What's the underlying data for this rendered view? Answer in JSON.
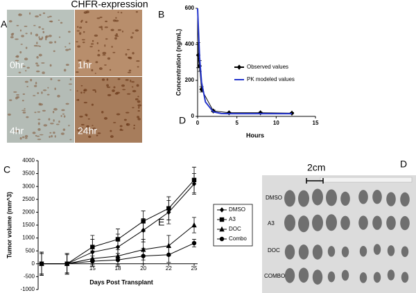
{
  "panel_a": {
    "letter": "A",
    "title": "CHFR-expression",
    "tiles": [
      "0hr",
      "1hr",
      "4hr",
      "24hr"
    ]
  },
  "panel_d": {
    "letter": "D",
    "scale": "2cm",
    "rows": [
      "DMSO",
      "A3",
      "DOC",
      "COMBO"
    ]
  },
  "chart_data": [
    {
      "type": "line",
      "letter": "B",
      "stray_letter": "D",
      "xlabel": "Hours",
      "ylabel": "Concentration (ng/mL)",
      "xlim": [
        0,
        15
      ],
      "xticks": [
        0,
        5,
        10,
        15
      ],
      "ylim": [
        0,
        600
      ],
      "yticks": [
        0,
        200,
        400,
        600
      ],
      "series": [
        {
          "name": "Observed values",
          "color": "#000000",
          "marker": "diamond",
          "x": [
            0.083,
            0.25,
            0.5,
            2,
            4,
            8,
            12
          ],
          "values": [
            340,
            280,
            150,
            30,
            20,
            20,
            18
          ],
          "errors": [
            70,
            30,
            15,
            5,
            3,
            3,
            3
          ]
        },
        {
          "name": "PK modeled values",
          "color": "#2233cc",
          "x": [
            0,
            0.25,
            0.5,
            1,
            2,
            3,
            4,
            6,
            8,
            12
          ],
          "values": [
            600,
            330,
            190,
            80,
            25,
            16,
            15,
            15,
            15,
            15
          ]
        }
      ]
    },
    {
      "type": "line",
      "letter": "C",
      "stray_letter": "E",
      "xlabel": "Days Post Transplant",
      "ylabel": "Tumor volume (mm^3)",
      "categories": [
        null,
        null,
        "15",
        "18",
        "20",
        "22",
        "25"
      ],
      "ylim": [
        -1000,
        4000
      ],
      "yticks": [
        -1000,
        -500,
        0,
        500,
        1000,
        1500,
        2000,
        2500,
        3000,
        3500,
        4000
      ],
      "series": [
        {
          "name": "DMSO",
          "color": "#000000",
          "marker": "diamond",
          "values": [
            0,
            0,
            450,
            650,
            1300,
            2000,
            3100
          ],
          "errors": [
            450,
            400,
            500,
            500,
            450,
            450,
            400
          ]
        },
        {
          "name": "A3",
          "color": "#000000",
          "marker": "square",
          "values": [
            0,
            0,
            650,
            950,
            1650,
            2150,
            3250
          ],
          "errors": [
            450,
            400,
            450,
            400,
            400,
            450,
            500
          ]
        },
        {
          "name": "DOC",
          "color": "#000000",
          "marker": "triangle",
          "values": [
            0,
            0,
            200,
            300,
            550,
            700,
            1500
          ],
          "errors": [
            400,
            400,
            300,
            350,
            400,
            400,
            300
          ]
        },
        {
          "name": "Combo",
          "color": "#000000",
          "marker": "circle",
          "values": [
            0,
            0,
            100,
            150,
            300,
            350,
            800
          ],
          "errors": [
            400,
            350,
            200,
            250,
            300,
            300,
            150
          ]
        }
      ]
    }
  ]
}
